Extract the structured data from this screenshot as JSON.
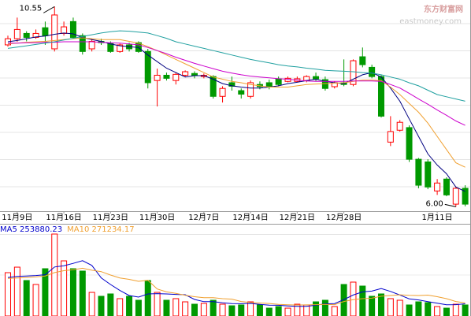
{
  "chart_data": {
    "type": "candlestick",
    "categories": [
      null,
      "11月9日",
      null,
      null,
      null,
      null,
      "11月16日",
      null,
      null,
      null,
      null,
      "11月23日",
      null,
      null,
      null,
      null,
      "11月30日",
      null,
      null,
      null,
      null,
      "12月7日",
      null,
      null,
      null,
      null,
      "12月14日",
      null,
      null,
      null,
      null,
      "12月21日",
      null,
      null,
      null,
      null,
      "12月28日",
      null,
      null,
      null,
      null,
      null,
      null,
      null,
      null,
      null,
      "1月11日",
      null,
      null,
      null
    ],
    "ohlc": [
      [
        9.68,
        9.89,
        9.64,
        9.82
      ],
      [
        9.82,
        10.3,
        9.75,
        10.03
      ],
      [
        9.94,
        9.99,
        9.76,
        9.85
      ],
      [
        9.85,
        10.03,
        9.82,
        9.94
      ],
      [
        10.07,
        10.21,
        9.68,
        9.89
      ],
      [
        9.59,
        10.55,
        9.53,
        10.36
      ],
      [
        9.94,
        10.21,
        9.89,
        10.09
      ],
      [
        10.21,
        10.3,
        9.82,
        9.85
      ],
      [
        9.89,
        9.94,
        9.46,
        9.53
      ],
      [
        9.59,
        9.82,
        9.53,
        9.76
      ],
      [
        9.76,
        9.82,
        9.68,
        9.73
      ],
      [
        9.71,
        9.76,
        9.5,
        9.53
      ],
      [
        9.53,
        9.71,
        9.5,
        9.68
      ],
      [
        9.68,
        9.73,
        9.53,
        9.59
      ],
      [
        9.73,
        9.76,
        9.5,
        9.53
      ],
      [
        9.53,
        9.59,
        8.69,
        8.82
      ],
      [
        8.87,
        9.14,
        8.28,
        8.99
      ],
      [
        8.99,
        9.05,
        8.87,
        8.92
      ],
      [
        8.87,
        9.05,
        8.78,
        9.01
      ],
      [
        8.99,
        9.1,
        8.96,
        9.07
      ],
      [
        9.03,
        9.08,
        8.92,
        8.99
      ],
      [
        8.96,
        9.03,
        8.92,
        8.99
      ],
      [
        8.96,
        8.99,
        8.46,
        8.51
      ],
      [
        8.51,
        8.74,
        8.37,
        8.69
      ],
      [
        8.82,
        8.96,
        8.64,
        8.74
      ],
      [
        8.64,
        8.69,
        8.46,
        8.56
      ],
      [
        8.51,
        8.87,
        8.46,
        8.82
      ],
      [
        8.78,
        8.85,
        8.67,
        8.73
      ],
      [
        8.82,
        8.89,
        8.67,
        8.74
      ],
      [
        8.91,
        8.96,
        8.74,
        8.78
      ],
      [
        8.85,
        8.96,
        8.83,
        8.92
      ],
      [
        8.85,
        8.96,
        8.83,
        8.91
      ],
      [
        8.87,
        8.99,
        8.83,
        8.96
      ],
      [
        8.96,
        9.05,
        8.85,
        8.91
      ],
      [
        8.89,
        8.96,
        8.64,
        8.69
      ],
      [
        8.73,
        8.85,
        8.69,
        8.82
      ],
      [
        8.82,
        9.35,
        8.74,
        8.78
      ],
      [
        8.78,
        9.35,
        8.74,
        9.32
      ],
      [
        9.41,
        9.62,
        9.17,
        9.23
      ],
      [
        9.17,
        9.23,
        8.92,
        8.96
      ],
      [
        8.96,
        8.99,
        8.03,
        8.06
      ],
      [
        7.47,
        8.06,
        7.38,
        7.71
      ],
      [
        7.74,
        7.97,
        7.71,
        7.92
      ],
      [
        7.8,
        7.85,
        7.02,
        7.08
      ],
      [
        7.08,
        7.11,
        6.42,
        6.49
      ],
      [
        7.02,
        7.08,
        6.4,
        6.45
      ],
      [
        6.36,
        6.63,
        6.27,
        6.54
      ],
      [
        6.63,
        6.67,
        6.24,
        6.27
      ],
      [
        6.06,
        6.45,
        6.0,
        6.42
      ],
      [
        6.42,
        6.49,
        6.01,
        6.06
      ]
    ],
    "up_color": "#ff0000",
    "down_color": "#009900",
    "ylim": [
      5.9,
      10.7
    ],
    "high_label": 10.55,
    "low_label": {
      "value": 6,
      "label": "6.00"
    },
    "ma_lines": [
      {
        "color": "#000080",
        "values": [
          9.75,
          9.78,
          9.82,
          9.86,
          9.88,
          9.92,
          9.95,
          9.93,
          9.85,
          9.8,
          9.76,
          9.7,
          9.66,
          9.64,
          9.62,
          9.45,
          9.3,
          9.15,
          9.05,
          8.95,
          8.98,
          8.98,
          8.9,
          8.8,
          8.75,
          8.72,
          8.7,
          8.7,
          8.72,
          8.75,
          8.8,
          8.83,
          8.87,
          8.9,
          8.85,
          8.82,
          8.8,
          8.9,
          9.0,
          9.05,
          8.95,
          8.7,
          8.4,
          8.0,
          7.6,
          7.2,
          6.95,
          6.75,
          6.45,
          6.35
        ]
      },
      {
        "color": "#f0a030",
        "values": [
          9.7,
          9.72,
          9.74,
          9.75,
          9.76,
          9.78,
          9.8,
          9.82,
          9.84,
          9.82,
          9.8,
          9.8,
          9.8,
          9.76,
          9.72,
          9.64,
          9.55,
          9.45,
          9.35,
          9.25,
          9.15,
          9.05,
          8.95,
          8.9,
          8.85,
          8.82,
          8.78,
          8.75,
          8.72,
          8.72,
          8.72,
          8.75,
          8.78,
          8.79,
          8.8,
          8.81,
          8.82,
          8.85,
          8.88,
          8.88,
          8.87,
          8.72,
          8.55,
          8.35,
          8.15,
          7.9,
          7.6,
          7.3,
          7.0,
          6.9
        ]
      },
      {
        "color": "#cc00cc",
        "values": [
          9.72,
          9.72,
          9.73,
          9.73,
          9.74,
          9.74,
          9.75,
          9.75,
          9.75,
          9.75,
          9.74,
          9.73,
          9.72,
          9.7,
          9.68,
          9.62,
          9.55,
          9.48,
          9.4,
          9.33,
          9.26,
          9.2,
          9.14,
          9.08,
          9.04,
          9.0,
          8.97,
          8.95,
          8.93,
          8.91,
          8.9,
          8.88,
          8.86,
          8.85,
          8.85,
          8.85,
          8.85,
          8.86,
          8.86,
          8.86,
          8.85,
          8.78,
          8.7,
          8.58,
          8.45,
          8.33,
          8.2,
          8.08,
          7.95,
          7.85
        ]
      },
      {
        "color": "#20a0a0",
        "values": [
          9.6,
          9.63,
          9.66,
          9.69,
          9.72,
          9.75,
          9.79,
          9.83,
          9.87,
          9.91,
          9.95,
          9.98,
          10.0,
          9.99,
          9.97,
          9.95,
          9.89,
          9.83,
          9.75,
          9.7,
          9.65,
          9.6,
          9.55,
          9.5,
          9.45,
          9.4,
          9.35,
          9.31,
          9.27,
          9.23,
          9.2,
          9.18,
          9.15,
          9.13,
          9.1,
          9.09,
          9.08,
          9.07,
          9.05,
          9.04,
          9.0,
          8.95,
          8.9,
          8.82,
          8.75,
          8.65,
          8.55,
          8.5,
          8.45,
          8.4
        ]
      }
    ],
    "volume": [
      899000,
      1013000,
      736000,
      654000,
      981000,
      1700000,
      1144000,
      981000,
      932000,
      490000,
      409000,
      458000,
      360000,
      409000,
      327000,
      736000,
      490000,
      327000,
      360000,
      294000,
      245000,
      262000,
      327000,
      245000,
      212000,
      229000,
      294000,
      229000,
      163000,
      196000,
      163000,
      245000,
      229000,
      294000,
      327000,
      196000,
      654000,
      703000,
      621000,
      409000,
      458000,
      360000,
      327000,
      229000,
      294000,
      278000,
      196000,
      163000,
      245000,
      229000
    ],
    "vlim": [
      0,
      1700000
    ],
    "vol_ma": [
      {
        "name": "MA5",
        "color": "#0000cc",
        "values": [
          800000,
          820000,
          830000,
          840000,
          857000,
          1017000,
          1043000,
          1092000,
          1148000,
          1049000,
          791000,
          654000,
          530000,
          425000,
          393000,
          458000,
          464000,
          458000,
          448000,
          441000,
          343000,
          298000,
          298000,
          275000,
          258000,
          255000,
          261000,
          242000,
          225000,
          222000,
          209000,
          199000,
          199000,
          225000,
          252000,
          258000,
          340000,
          435000,
          500000,
          517000,
          569000,
          510000,
          435000,
          357000,
          334000,
          298000,
          265000,
          232000,
          235000,
          253880.23
        ]
      },
      {
        "name": "MA10",
        "color": "#f0a030",
        "values": [
          780000,
          790000,
          800000,
          810000,
          830000,
          900000,
          940000,
          960000,
          990000,
          950000,
          920000,
          850000,
          790000,
          760000,
          720000,
          740000,
          560000,
          500000,
          470000,
          430000,
          400000,
          380000,
          380000,
          360000,
          350000,
          300000,
          280000,
          270000,
          260000,
          240000,
          232000,
          228000,
          230000,
          235000,
          240000,
          235000,
          300000,
          340000,
          360000,
          370000,
          410000,
          425000,
          440000,
          430000,
          425000,
          433000,
          400000,
          360000,
          300000,
          271234.17
        ]
      }
    ],
    "watermark": {
      "name": "东方财富网",
      "site": "eastmoney.com"
    }
  }
}
